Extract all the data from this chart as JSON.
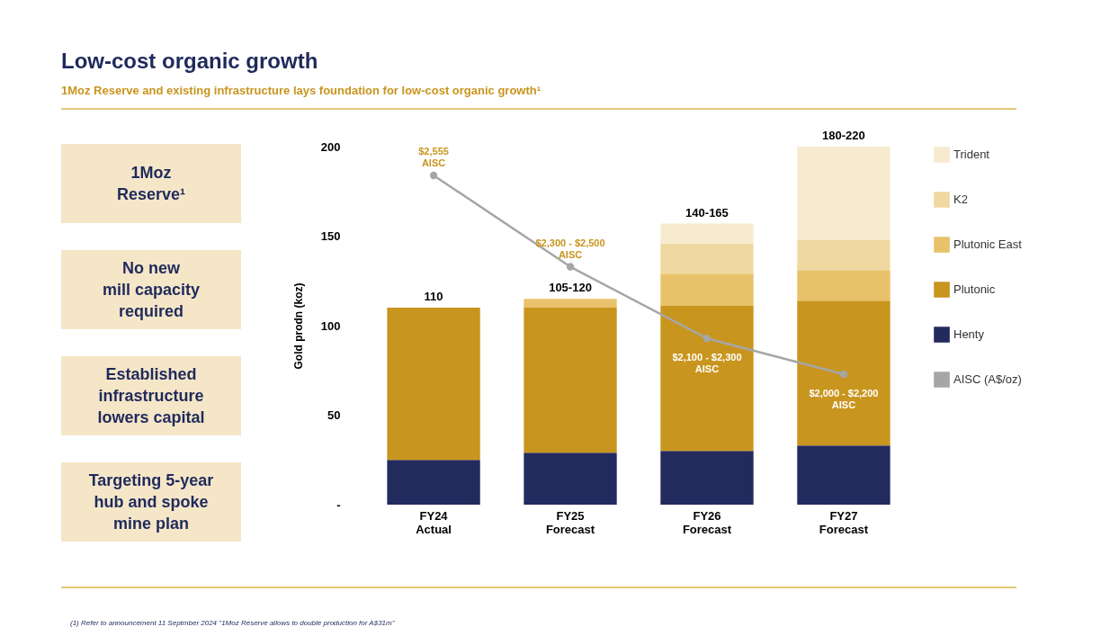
{
  "chart_data": {
    "type": "bar",
    "title": "Low-cost organic growth",
    "subtitle": "1Moz Reserve and existing infrastructure lays foundation for low-cost organic growth¹",
    "ylabel": "Gold prodn (koz)",
    "categories": [
      "FY24\nActual",
      "FY25\nForecast",
      "FY26\nForecast",
      "FY27\nForecast"
    ],
    "stacked": true,
    "series": [
      {
        "name": "Henty",
        "color": "#232a5e",
        "values": [
          25,
          29,
          30,
          33
        ]
      },
      {
        "name": "Plutonic",
        "color": "#c8951e",
        "values": [
          85,
          81,
          81,
          81
        ]
      },
      {
        "name": "Plutonic East",
        "color": "#e8c26a",
        "values": [
          null,
          5,
          18,
          17
        ]
      },
      {
        "name": "K2",
        "color": "#f0d9a0",
        "values": [
          null,
          null,
          17,
          17
        ]
      },
      {
        "name": "Trident",
        "color": "#f7ebcf",
        "values": [
          null,
          null,
          11,
          52
        ]
      },
      {
        "name": "AISC (A$/oz)",
        "type": "line",
        "axis": "y2",
        "color": "#a6a6a6",
        "marker": "circle",
        "values": [
          2555,
          2300,
          2100,
          2000
        ],
        "value_labels": [
          "$2,555\nAISC",
          "$2,300 - $2,500\nAISC",
          "$2,100 - $2,300\nAISC",
          "$2,000 - $2,200\nAISC"
        ]
      }
    ],
    "totals": [
      "110",
      "105-120",
      "140-165",
      "180-220"
    ],
    "ylim": [
      0,
      200
    ],
    "yticks": [
      {
        "value": 0,
        "label": "-"
      },
      50,
      100,
      150,
      200
    ],
    "grid": false,
    "legend": "right",
    "annotations": [
      "1Moz\nReserve¹",
      "No new\nmill capacity\nrequired",
      "Established\ninfrastructure\nlowers capital",
      "Targeting 5-year\nhub and spoke\nmine plan",
      "(1) Refer to announcement 11 Septmber 2024 \"1Moz Reserve allows to double production for A$31m\""
    ]
  }
}
